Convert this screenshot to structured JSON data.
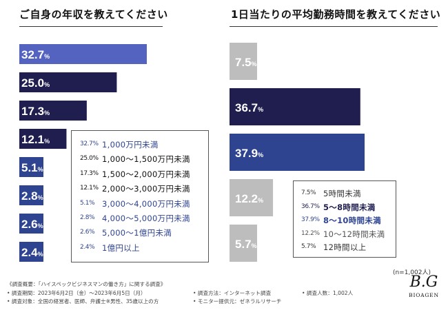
{
  "chart_data": [
    {
      "type": "bar",
      "orientation": "horizontal",
      "title": "ご自身の年収を教えてください",
      "categories": [
        "1,000万円未満",
        "1,000～1,500万円未満",
        "1,500～2,000万円未満",
        "2,000～3,000万円未満",
        "3,000～4,000万円未満",
        "4,000～5,000万円未満",
        "5,000～1億円未満",
        "1億円以上"
      ],
      "values": [
        32.7,
        25.0,
        17.3,
        12.1,
        5.1,
        2.8,
        2.6,
        2.4
      ],
      "value_labels": [
        "32.7%",
        "25.0%",
        "17.3%",
        "12.1%",
        "5.1%",
        "2.8%",
        "2.6%",
        "2.4%"
      ],
      "colors": [
        "#5462c0",
        "#1f1e4f",
        "#1f1e4f",
        "#1f1e4f",
        "#2f4490",
        "#2f4490",
        "#2f4490",
        "#2f4490"
      ],
      "legend_colors": [
        "#2f4490",
        "#111111",
        "#111111",
        "#111111",
        "#2f4490",
        "#2f4490",
        "#2f4490",
        "#2f4490"
      ],
      "legend_placement": "right"
    },
    {
      "type": "bar",
      "orientation": "horizontal",
      "title": "1日当たりの平均勤務時間を教えてください",
      "categories": [
        "5時間未満",
        "5～8時間未満",
        "8～10時間未満",
        "10～12時間未満",
        "12時間以上"
      ],
      "values": [
        7.5,
        36.7,
        37.9,
        12.2,
        5.7
      ],
      "value_labels": [
        "7.5%",
        "36.7%",
        "37.9%",
        "12.2%",
        "5.7%"
      ],
      "colors": [
        "#bdbdbd",
        "#1f1e4f",
        "#2f4490",
        "#bdbdbd",
        "#bdbdbd"
      ],
      "label_colors": [
        "#444444",
        "#ffffff",
        "#ffffff",
        "#444444",
        "#444444"
      ],
      "legend_colors": [
        "#333333",
        "#1f1e4f",
        "#2f4490",
        "#555555",
        "#333333"
      ],
      "legend_bold": [
        false,
        true,
        true,
        false,
        false
      ],
      "legend_placement": "bottom-right"
    }
  ],
  "n_label": "(n=1,002人)",
  "footer": {
    "survey_title": "《調査概要：「ハイスペックビジネスマンの働き方」に関する調査》",
    "period": "• 調査期間：2023年6月2日（金）～2023年6月5日（月）",
    "target": "• 調査対象：全国の経営者、医師、弁護士※男性、35歳以上の方",
    "method": "• 調査方法：インターネット調査",
    "provider": "• モニター提供元：ゼネラルリサーチ",
    "count": "• 調査人数：1,002人"
  },
  "logo": {
    "mark": "B.G",
    "name": "BIOAGEN"
  }
}
